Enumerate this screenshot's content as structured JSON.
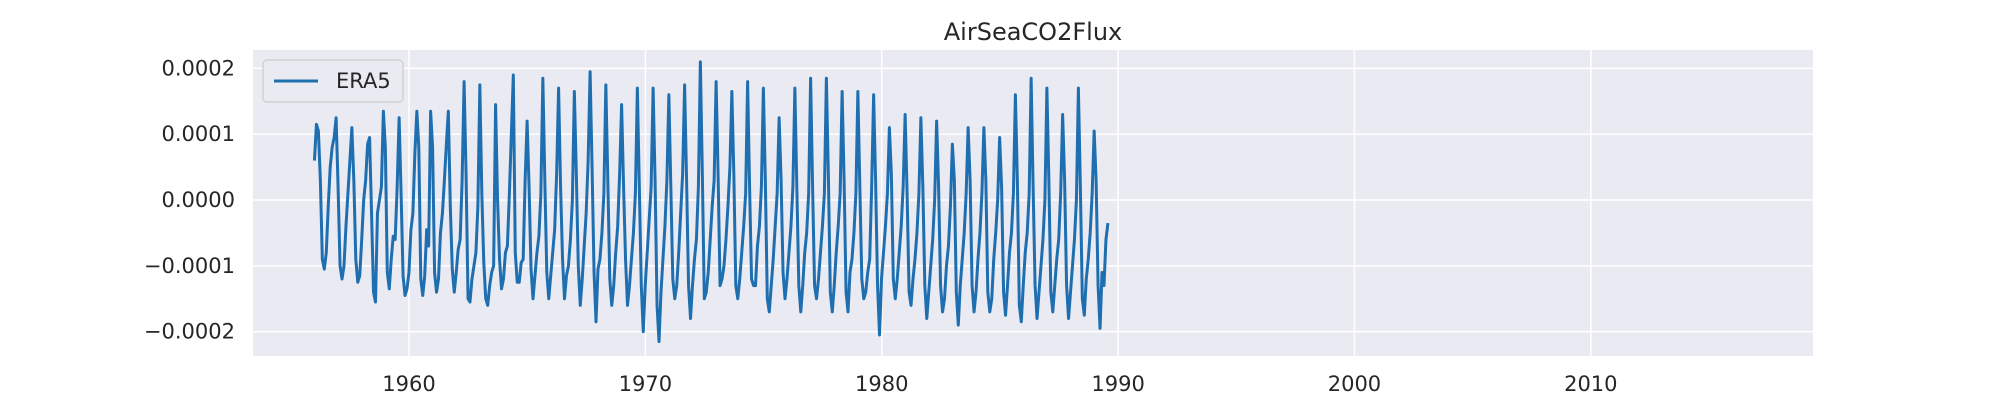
{
  "chart_data": {
    "type": "line",
    "title": "AirSeaCO2Flux",
    "xlabel": "",
    "ylabel": "",
    "x_ticks": [
      "1960",
      "1970",
      "1980",
      "1990",
      "2000",
      "2010"
    ],
    "y_ticks": [
      "0.0002",
      "0.0001",
      "0.0000",
      "−0.0001",
      "−0.0002"
    ],
    "xlim": [
      1953.4,
      2019.4
    ],
    "ylim": [
      -0.000237,
      0.000228
    ],
    "grid": true,
    "legend_position": "upper-left",
    "series": [
      {
        "name": "ERA5",
        "color": "#1f6fb0",
        "x_start": 1956.0,
        "x_step": 0.0833,
        "values": [
          6e-05,
          0.000115,
          0.000105,
          3e-05,
          -9e-05,
          -0.000105,
          -8e-05,
          -1e-05,
          5e-05,
          8e-05,
          9.5e-05,
          0.000125,
          2e-05,
          -0.0001,
          -0.00012,
          -0.0001,
          -4e-05,
          1e-05,
          6e-05,
          0.00011,
          3e-05,
          -9e-05,
          -0.000125,
          -0.000115,
          -6e-05,
          0.0,
          3e-05,
          8.5e-05,
          9.5e-05,
          -2e-05,
          -0.00014,
          -0.000155,
          -2e-05,
          0.0,
          2e-05,
          0.000135,
          8e-05,
          -0.00011,
          -0.000135,
          -9e-05,
          -5.5e-05,
          -6e-05,
          2e-05,
          0.000125,
          1e-05,
          -0.000115,
          -0.000145,
          -0.000135,
          -0.00011,
          -4.5e-05,
          -2e-05,
          7e-05,
          0.000135,
          8e-05,
          -0.00012,
          -0.000145,
          -0.000115,
          -4.5e-05,
          -7e-05,
          0.000135,
          8e-05,
          -0.00011,
          -0.00014,
          -0.00012,
          -5e-05,
          -2e-05,
          3e-05,
          8.5e-05,
          0.000135,
          -1e-05,
          -0.000105,
          -0.00014,
          -0.00011,
          -7.5e-05,
          -6e-05,
          3e-05,
          0.00018,
          4e-05,
          -0.00015,
          -0.000155,
          -0.00012,
          -0.0001,
          -8e-05,
          -1e-05,
          0.000175,
          1e-05,
          -9.5e-05,
          -0.00015,
          -0.00016,
          -0.00013,
          -0.00011,
          -0.0001,
          0.000145,
          0.0,
          -9e-05,
          -0.000135,
          -0.00012,
          -8e-05,
          -7e-05,
          1e-05,
          0.0001,
          0.00019,
          -8e-05,
          -0.000125,
          -0.000125,
          -9.5e-05,
          -9e-05,
          3e-05,
          0.00012,
          2e-05,
          -0.000105,
          -0.00015,
          -0.000115,
          -8e-05,
          -5.5e-05,
          1e-05,
          0.000185,
          3e-05,
          -0.00011,
          -0.00015,
          -0.000115,
          -8e-05,
          -4.5e-05,
          4e-05,
          0.00017,
          2e-05,
          -9e-05,
          -0.00015,
          -0.000115,
          -0.0001,
          -6e-05,
          0.0,
          0.000165,
          4e-05,
          -0.0001,
          -0.00016,
          -0.00012,
          -7e-05,
          -2e-05,
          6e-05,
          0.000195,
          5e-05,
          -0.00011,
          -0.000185,
          -0.000105,
          -9e-05,
          -5e-05,
          1e-05,
          0.000175,
          3e-05,
          -0.00012,
          -0.00016,
          -0.00013,
          -8e-05,
          -4e-05,
          4e-05,
          0.000145,
          2e-05,
          -9e-05,
          -0.00016,
          -0.00013,
          -9e-05,
          -5e-05,
          1e-05,
          0.00017,
          2e-05,
          -0.00013,
          -0.0002,
          -0.00013,
          -8e-05,
          -3e-05,
          2e-05,
          0.00017,
          3e-05,
          -0.00016,
          -0.000215,
          -0.00014,
          -9e-05,
          -4e-05,
          3e-05,
          0.00016,
          2e-05,
          -0.00012,
          -0.00015,
          -0.00013,
          -8e-05,
          -2e-05,
          4e-05,
          0.000175,
          3e-05,
          -0.00013,
          -0.00018,
          -0.00013,
          -9e-05,
          -6e-05,
          2e-05,
          0.00021,
          4e-05,
          -0.00015,
          -0.00014,
          -0.00011,
          -6e-05,
          -1e-05,
          3e-05,
          0.00018,
          4e-05,
          -0.00013,
          -0.00012,
          -0.0001,
          -6e-05,
          -1e-05,
          5e-05,
          0.000165,
          4e-05,
          -0.00013,
          -0.00015,
          -0.00012,
          -8e-05,
          -4e-05,
          1e-05,
          0.00018,
          2e-05,
          -0.00012,
          -0.00013,
          -0.00013,
          -7e-05,
          -4e-05,
          2e-05,
          0.00017,
          3e-05,
          -0.00015,
          -0.00017,
          -0.00013,
          -9e-05,
          -4e-05,
          1e-05,
          0.000125,
          3e-05,
          -0.00011,
          -0.00015,
          -0.00012,
          -8e-05,
          -4e-05,
          2e-05,
          0.00017,
          2e-05,
          -0.00013,
          -0.00017,
          -0.00013,
          -8e-05,
          -5e-05,
          1e-05,
          0.000185,
          2e-05,
          -0.00013,
          -0.00015,
          -0.00012,
          -8e-05,
          -4e-05,
          1e-05,
          0.000185,
          4e-05,
          -0.00014,
          -0.00017,
          -0.00013,
          -8e-05,
          -4e-05,
          1e-05,
          0.000165,
          3e-05,
          -0.00014,
          -0.00017,
          -0.00011,
          -9e-05,
          -5e-05,
          1e-05,
          0.000165,
          2e-05,
          -0.00012,
          -0.00015,
          -0.00014,
          -0.00011,
          -9e-05,
          2e-05,
          0.00016,
          3e-05,
          -0.00013,
          -0.000205,
          -0.00012,
          -8e-05,
          -4e-05,
          1e-05,
          0.00011,
          4e-05,
          -0.00012,
          -0.00015,
          -0.00012,
          -8e-05,
          -4e-05,
          2e-05,
          0.00013,
          1e-05,
          -0.00014,
          -0.00016,
          -0.00012,
          -9e-05,
          -5e-05,
          1e-05,
          0.000125,
          2e-05,
          -0.00013,
          -0.00018,
          -0.00014,
          -0.0001,
          -6e-05,
          0.0,
          0.00012,
          2e-05,
          -0.00013,
          -0.00017,
          -0.00015,
          -0.0001,
          -7e-05,
          -1e-05,
          8.5e-05,
          3e-05,
          -0.00014,
          -0.00019,
          -0.00013,
          -9e-05,
          -5e-05,
          1e-05,
          0.00011,
          3e-05,
          -0.00013,
          -0.00017,
          -0.00014,
          -9e-05,
          -5e-05,
          1e-05,
          0.00011,
          3e-05,
          -0.00014,
          -0.00017,
          -0.00015,
          -9e-05,
          -5e-05,
          0.0,
          9.5e-05,
          2e-05,
          -0.00014,
          -0.000175,
          -0.00013,
          -8e-05,
          -5e-05,
          1e-05,
          0.00016,
          3e-05,
          -0.00016,
          -0.000185,
          -0.00013,
          -8e-05,
          -5e-05,
          1e-05,
          0.000185,
          2e-05,
          -0.00013,
          -0.00018,
          -0.00014,
          -0.0001,
          -6e-05,
          0.0,
          0.00017,
          3e-05,
          -0.00014,
          -0.00017,
          -0.00013,
          -9e-05,
          -6e-05,
          1e-05,
          0.00013,
          3e-05,
          -0.00013,
          -0.00018,
          -0.00014,
          -0.0001,
          -6e-05,
          0.0,
          0.00017,
          2e-05,
          -0.00015,
          -0.000175,
          -0.00012,
          -9e-05,
          -5e-05,
          1e-05,
          0.000105,
          3e-05,
          -0.00013,
          -0.000195,
          -0.00011,
          -0.00013,
          -6e-05,
          -3.5e-05
        ]
      }
    ]
  }
}
